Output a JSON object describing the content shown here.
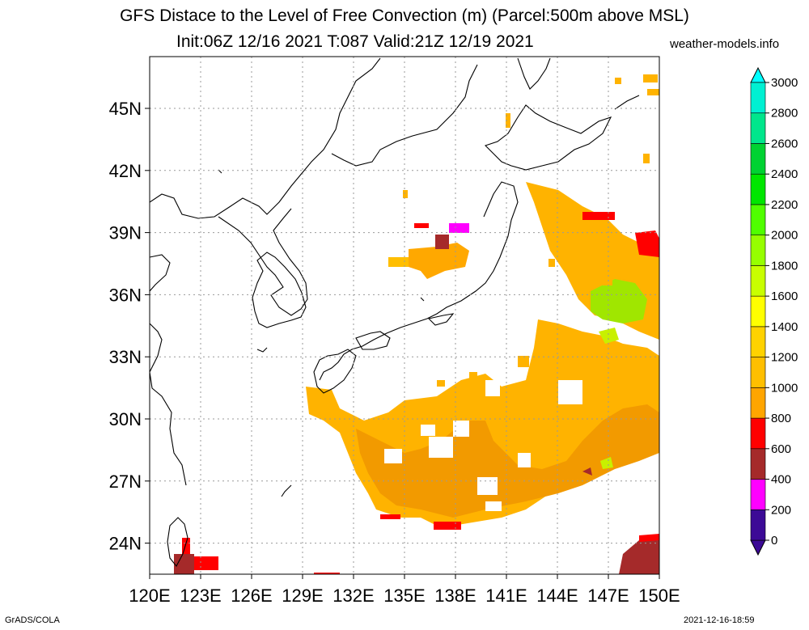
{
  "title_line1": "GFS Distace to the Level of Free Convection (m) (Parcel:500m above MSL)",
  "title_line2": "Init:06Z 12/16 2021 T:087 Valid:21Z 12/19 2021",
  "site": "weather-models.info",
  "footer_left": "GrADS/COLA",
  "footer_right": "2021-12-16-18:59",
  "map": {
    "lon_range": [
      120,
      150
    ],
    "lat_range": [
      22.5,
      47.5
    ],
    "grid": "dotted",
    "lat_labels": [
      "45N",
      "42N",
      "39N",
      "36N",
      "33N",
      "30N",
      "27N",
      "24N"
    ],
    "lat_values": [
      45,
      42,
      39,
      36,
      33,
      30,
      27,
      24
    ],
    "lon_labels": [
      "120E",
      "123E",
      "126E",
      "129E",
      "132E",
      "135E",
      "138E",
      "141E",
      "144E",
      "147E",
      "150E"
    ],
    "lon_values": [
      120,
      123,
      126,
      129,
      132,
      135,
      138,
      141,
      144,
      147,
      150
    ]
  },
  "colorbar": {
    "labels": [
      "0",
      "200",
      "400",
      "600",
      "800",
      "1000",
      "1200",
      "1400",
      "1600",
      "1800",
      "2000",
      "2200",
      "2400",
      "2600",
      "2800",
      "3000"
    ],
    "colors": [
      "#3c0a96",
      "#ff00ff",
      "#a52a2a",
      "#ff0000",
      "#ffa500",
      "#ffbf00",
      "#ffd200",
      "#ffff00",
      "#c8ff00",
      "#96ff00",
      "#50ff00",
      "#00e600",
      "#00d232",
      "#00e68c",
      "#00f0d2",
      "#00ffff"
    ]
  }
}
